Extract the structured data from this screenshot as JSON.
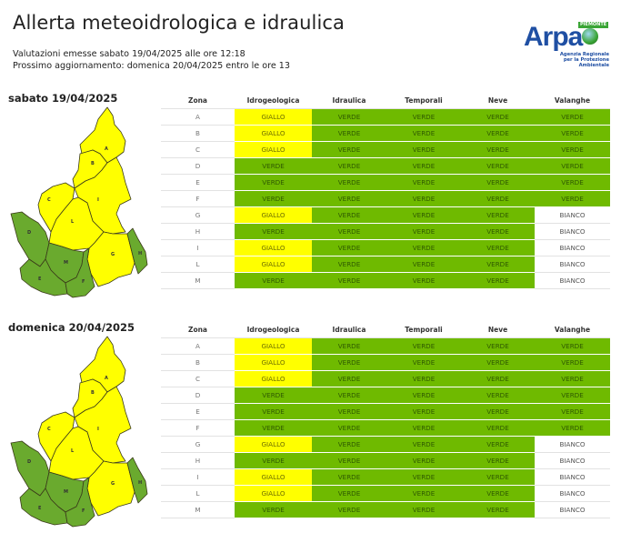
{
  "header": {
    "title": "Allerta meteoidrologica e idraulica",
    "issued": "Valutazioni emesse sabato 19/04/2025 alle ore 12:18",
    "next_update": "Prossimo aggiornamento: domenica 20/04/2025 entro le ore 13"
  },
  "logo": {
    "name": "Arpa",
    "region": "PIEMONTE",
    "tagline_1": "Agenzia Regionale",
    "tagline_2": "per la Protezione Ambientale"
  },
  "colors": {
    "VERDE": "#6fba00",
    "GIALLO": "#ffff00",
    "BIANCO": "#ffffff"
  },
  "columns": [
    "Zona",
    "Idrogeologica",
    "Idraulica",
    "Temporali",
    "Neve",
    "Valanghe"
  ],
  "days": [
    {
      "date": "sabato 19/04/2025",
      "map_zones": {
        "A": "GIALLO",
        "B": "GIALLO",
        "C": "GIALLO",
        "D": "VERDE",
        "E": "VERDE",
        "F": "VERDE",
        "G": "GIALLO",
        "H": "VERDE",
        "I": "GIALLO",
        "L": "GIALLO",
        "M": "VERDE"
      },
      "rows": [
        {
          "zona": "A",
          "idrogeologica": "GIALLO",
          "idraulica": "VERDE",
          "temporali": "VERDE",
          "neve": "VERDE",
          "valanghe": "VERDE"
        },
        {
          "zona": "B",
          "idrogeologica": "GIALLO",
          "idraulica": "VERDE",
          "temporali": "VERDE",
          "neve": "VERDE",
          "valanghe": "VERDE"
        },
        {
          "zona": "C",
          "idrogeologica": "GIALLO",
          "idraulica": "VERDE",
          "temporali": "VERDE",
          "neve": "VERDE",
          "valanghe": "VERDE"
        },
        {
          "zona": "D",
          "idrogeologica": "VERDE",
          "idraulica": "VERDE",
          "temporali": "VERDE",
          "neve": "VERDE",
          "valanghe": "VERDE"
        },
        {
          "zona": "E",
          "idrogeologica": "VERDE",
          "idraulica": "VERDE",
          "temporali": "VERDE",
          "neve": "VERDE",
          "valanghe": "VERDE"
        },
        {
          "zona": "F",
          "idrogeologica": "VERDE",
          "idraulica": "VERDE",
          "temporali": "VERDE",
          "neve": "VERDE",
          "valanghe": "VERDE"
        },
        {
          "zona": "G",
          "idrogeologica": "GIALLO",
          "idraulica": "VERDE",
          "temporali": "VERDE",
          "neve": "VERDE",
          "valanghe": "BIANCO"
        },
        {
          "zona": "H",
          "idrogeologica": "VERDE",
          "idraulica": "VERDE",
          "temporali": "VERDE",
          "neve": "VERDE",
          "valanghe": "BIANCO"
        },
        {
          "zona": "I",
          "idrogeologica": "GIALLO",
          "idraulica": "VERDE",
          "temporali": "VERDE",
          "neve": "VERDE",
          "valanghe": "BIANCO"
        },
        {
          "zona": "L",
          "idrogeologica": "GIALLO",
          "idraulica": "VERDE",
          "temporali": "VERDE",
          "neve": "VERDE",
          "valanghe": "BIANCO"
        },
        {
          "zona": "M",
          "idrogeologica": "VERDE",
          "idraulica": "VERDE",
          "temporali": "VERDE",
          "neve": "VERDE",
          "valanghe": "BIANCO"
        }
      ]
    },
    {
      "date": "domenica 20/04/2025",
      "map_zones": {
        "A": "GIALLO",
        "B": "GIALLO",
        "C": "GIALLO",
        "D": "VERDE",
        "E": "VERDE",
        "F": "VERDE",
        "G": "GIALLO",
        "H": "VERDE",
        "I": "GIALLO",
        "L": "GIALLO",
        "M": "VERDE"
      },
      "rows": [
        {
          "zona": "A",
          "idrogeologica": "GIALLO",
          "idraulica": "VERDE",
          "temporali": "VERDE",
          "neve": "VERDE",
          "valanghe": "VERDE"
        },
        {
          "zona": "B",
          "idrogeologica": "GIALLO",
          "idraulica": "VERDE",
          "temporali": "VERDE",
          "neve": "VERDE",
          "valanghe": "VERDE"
        },
        {
          "zona": "C",
          "idrogeologica": "GIALLO",
          "idraulica": "VERDE",
          "temporali": "VERDE",
          "neve": "VERDE",
          "valanghe": "VERDE"
        },
        {
          "zona": "D",
          "idrogeologica": "VERDE",
          "idraulica": "VERDE",
          "temporali": "VERDE",
          "neve": "VERDE",
          "valanghe": "VERDE"
        },
        {
          "zona": "E",
          "idrogeologica": "VERDE",
          "idraulica": "VERDE",
          "temporali": "VERDE",
          "neve": "VERDE",
          "valanghe": "VERDE"
        },
        {
          "zona": "F",
          "idrogeologica": "VERDE",
          "idraulica": "VERDE",
          "temporali": "VERDE",
          "neve": "VERDE",
          "valanghe": "VERDE"
        },
        {
          "zona": "G",
          "idrogeologica": "GIALLO",
          "idraulica": "VERDE",
          "temporali": "VERDE",
          "neve": "VERDE",
          "valanghe": "BIANCO"
        },
        {
          "zona": "H",
          "idrogeologica": "VERDE",
          "idraulica": "VERDE",
          "temporali": "VERDE",
          "neve": "VERDE",
          "valanghe": "BIANCO"
        },
        {
          "zona": "I",
          "idrogeologica": "GIALLO",
          "idraulica": "VERDE",
          "temporali": "VERDE",
          "neve": "VERDE",
          "valanghe": "BIANCO"
        },
        {
          "zona": "L",
          "idrogeologica": "GIALLO",
          "idraulica": "VERDE",
          "temporali": "VERDE",
          "neve": "VERDE",
          "valanghe": "BIANCO"
        },
        {
          "zona": "M",
          "idrogeologica": "VERDE",
          "idraulica": "VERDE",
          "temporali": "VERDE",
          "neve": "VERDE",
          "valanghe": "BIANCO"
        }
      ]
    }
  ]
}
